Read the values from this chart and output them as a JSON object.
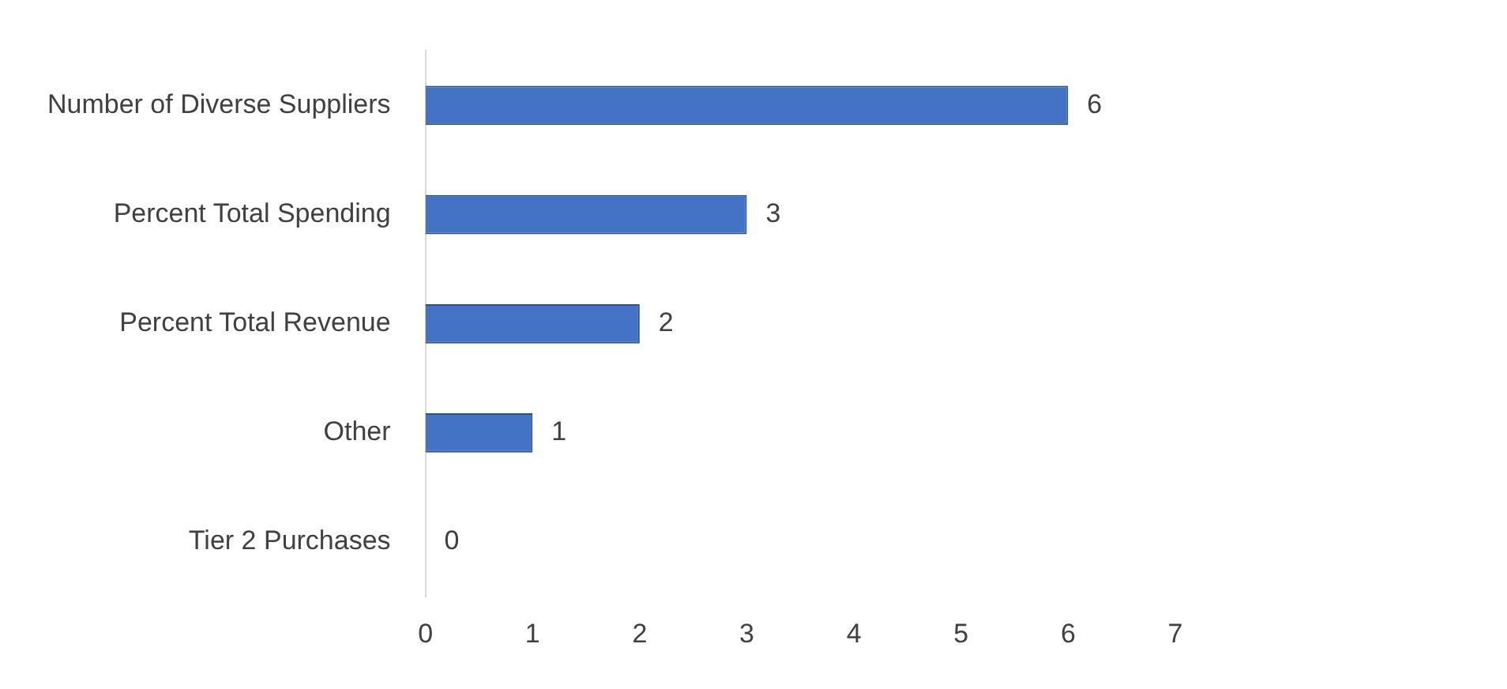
{
  "chart_data": {
    "type": "bar",
    "orientation": "horizontal",
    "categories": [
      "Number of Diverse Suppliers",
      "Percent Total Spending",
      "Percent Total Revenue",
      "Other",
      "Tier 2 Purchases"
    ],
    "values": [
      6,
      3,
      2,
      1,
      0
    ],
    "color": "#4472c4",
    "xlim": [
      0,
      7
    ],
    "xticks": [
      0,
      1,
      2,
      3,
      4,
      5,
      6,
      7
    ],
    "grid": false,
    "legend": false,
    "data_labels": true
  }
}
